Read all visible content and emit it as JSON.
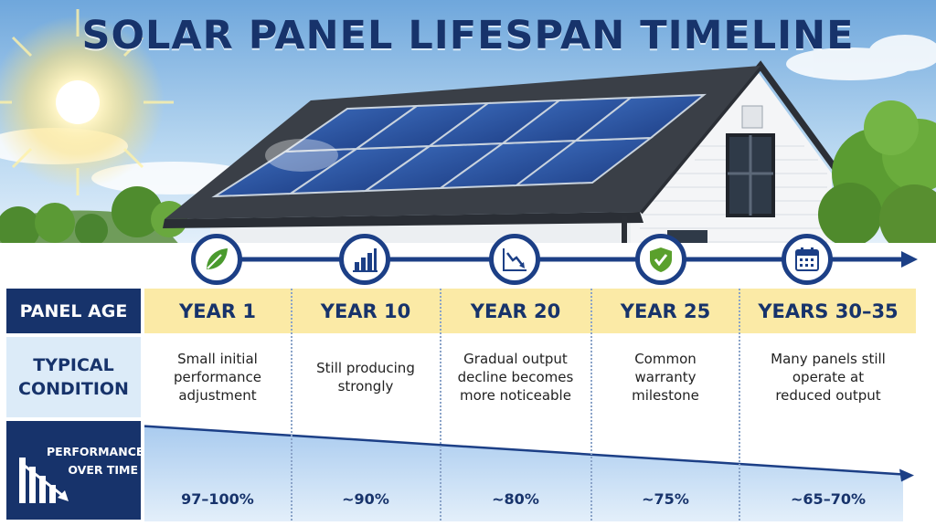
{
  "title": "SOLAR PANEL LIFESPAN TIMELINE",
  "row_labels": {
    "panel_age": "PANEL AGE",
    "typical_condition": "TYPICAL\nCONDITION",
    "performance": "PERFORMANCE\nOVER TIME"
  },
  "milestones": [
    {
      "age": "YEAR 1",
      "condition": "Small initial\nperformance\nadjustment",
      "performance": "97–100%",
      "performance_value": 98.5,
      "icon": "leaf-icon"
    },
    {
      "age": "YEAR 10",
      "condition": "Still producing\nstrongly",
      "performance": "~90%",
      "performance_value": 90,
      "icon": "bar-chart-icon"
    },
    {
      "age": "YEAR 20",
      "condition": "Gradual output\ndecline becomes\nmore noticeable",
      "performance": "~80%",
      "performance_value": 80,
      "icon": "trend-down-icon"
    },
    {
      "age": "YEAR 25",
      "condition": "Common\nwarranty\nmilestone",
      "performance": "~75%",
      "performance_value": 75,
      "icon": "shield-check-icon"
    },
    {
      "age": "YEARS 30–35",
      "condition": "Many panels still\noperate at\nreduced output",
      "performance": "~65–70%",
      "performance_value": 67.5,
      "icon": "calendar-icon"
    }
  ],
  "colors": {
    "navy": "#17336b",
    "accent_blue": "#1c3f86",
    "age_band": "#fbeaa6",
    "condition_label_bg": "#dcebf8",
    "leaf_green": "#4a9a2e",
    "shield_green": "#5aa02c"
  }
}
